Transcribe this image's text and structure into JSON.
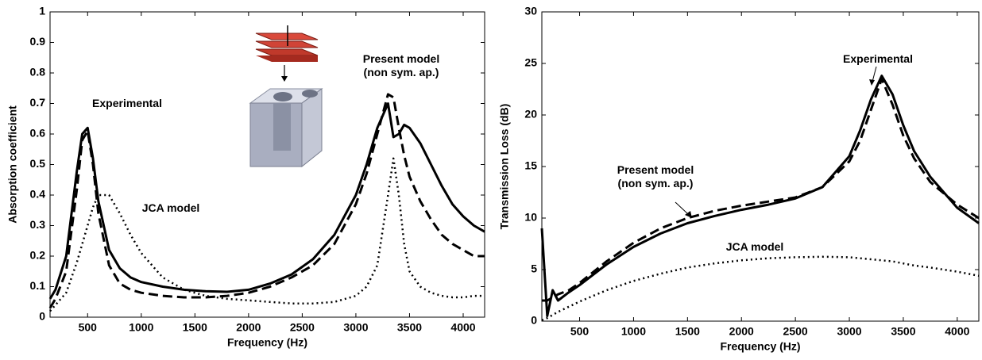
{
  "chart_data": [
    {
      "type": "line",
      "xlabel": "Frequency (Hz)",
      "ylabel": "Absorption coefficient",
      "xlim": [
        150,
        4200
      ],
      "ylim": [
        0,
        1
      ],
      "xticks": [
        500,
        1000,
        1500,
        2000,
        2500,
        3000,
        3500,
        4000
      ],
      "yticks": [
        0,
        0.1,
        0.2,
        0.3,
        0.4,
        0.5,
        0.6,
        0.7,
        0.8,
        0.9,
        1
      ],
      "x": [
        150,
        200,
        300,
        400,
        450,
        500,
        550,
        600,
        700,
        800,
        900,
        1000,
        1200,
        1400,
        1600,
        1800,
        2000,
        2200,
        2400,
        2600,
        2800,
        3000,
        3100,
        3200,
        3300,
        3350,
        3400,
        3450,
        3500,
        3600,
        3700,
        3800,
        3900,
        4000,
        4100,
        4200
      ],
      "series": [
        {
          "name": "Experimental",
          "color": "#000000",
          "style": "solid",
          "values": [
            0.06,
            0.09,
            0.2,
            0.48,
            0.6,
            0.62,
            0.52,
            0.38,
            0.22,
            0.16,
            0.13,
            0.115,
            0.1,
            0.09,
            0.085,
            0.083,
            0.09,
            0.11,
            0.14,
            0.19,
            0.27,
            0.4,
            0.5,
            0.62,
            0.7,
            0.59,
            0.6,
            0.63,
            0.62,
            0.57,
            0.5,
            0.43,
            0.37,
            0.33,
            0.3,
            0.28
          ]
        },
        {
          "name": "Present model (non sym. ap.)",
          "color": "#000000",
          "style": "dashed",
          "values": [
            0.03,
            0.06,
            0.15,
            0.42,
            0.58,
            0.61,
            0.5,
            0.34,
            0.17,
            0.11,
            0.09,
            0.08,
            0.07,
            0.065,
            0.065,
            0.07,
            0.08,
            0.1,
            0.13,
            0.17,
            0.24,
            0.37,
            0.47,
            0.6,
            0.73,
            0.72,
            0.62,
            0.53,
            0.46,
            0.38,
            0.32,
            0.27,
            0.24,
            0.22,
            0.2,
            0.2
          ]
        },
        {
          "name": "JCA model",
          "color": "#000000",
          "style": "dotted",
          "values": [
            0.02,
            0.04,
            0.08,
            0.18,
            0.24,
            0.3,
            0.36,
            0.4,
            0.4,
            0.34,
            0.27,
            0.21,
            0.13,
            0.09,
            0.07,
            0.06,
            0.055,
            0.05,
            0.045,
            0.045,
            0.05,
            0.07,
            0.1,
            0.17,
            0.4,
            0.52,
            0.4,
            0.24,
            0.15,
            0.1,
            0.08,
            0.07,
            0.065,
            0.065,
            0.07,
            0.07
          ]
        }
      ]
    },
    {
      "type": "line",
      "xlabel": "Frequency (Hz)",
      "ylabel": "Transmission Loss (dB)",
      "xlim": [
        150,
        4200
      ],
      "ylim": [
        0,
        30
      ],
      "xticks": [
        500,
        1000,
        1500,
        2000,
        2500,
        3000,
        3500,
        4000
      ],
      "yticks": [
        0,
        5,
        10,
        15,
        20,
        25,
        30
      ],
      "x": [
        150,
        200,
        250,
        300,
        400,
        500,
        750,
        1000,
        1250,
        1500,
        1750,
        2000,
        2250,
        2500,
        2750,
        3000,
        3100,
        3200,
        3300,
        3400,
        3500,
        3600,
        3750,
        4000,
        4200
      ],
      "series": [
        {
          "name": "Experimental",
          "color": "#000000",
          "style": "solid",
          "values": [
            9,
            0.5,
            3,
            2,
            2.8,
            3.5,
            5.5,
            7.2,
            8.5,
            9.5,
            10.2,
            10.8,
            11.3,
            11.9,
            13,
            16,
            18.5,
            21.5,
            23.8,
            22,
            19,
            16.5,
            14,
            11,
            9.5
          ]
        },
        {
          "name": "Present model (non sym. ap.)",
          "color": "#000000",
          "style": "dashed",
          "values": [
            2,
            2,
            2.3,
            2.6,
            3,
            3.7,
            5.8,
            7.6,
            9,
            10,
            10.7,
            11.2,
            11.6,
            12,
            13,
            15.5,
            17.5,
            20.5,
            23.5,
            21,
            18,
            15.8,
            13.5,
            11.3,
            10
          ]
        },
        {
          "name": "JCA model",
          "color": "#000000",
          "style": "dotted",
          "values": [
            0.1,
            0.3,
            0.6,
            0.9,
            1.4,
            1.9,
            3,
            3.9,
            4.6,
            5.2,
            5.6,
            5.9,
            6.1,
            6.2,
            6.25,
            6.2,
            6.1,
            6,
            5.9,
            5.8,
            5.6,
            5.4,
            5.2,
            4.8,
            4.4
          ]
        }
      ]
    }
  ]
}
